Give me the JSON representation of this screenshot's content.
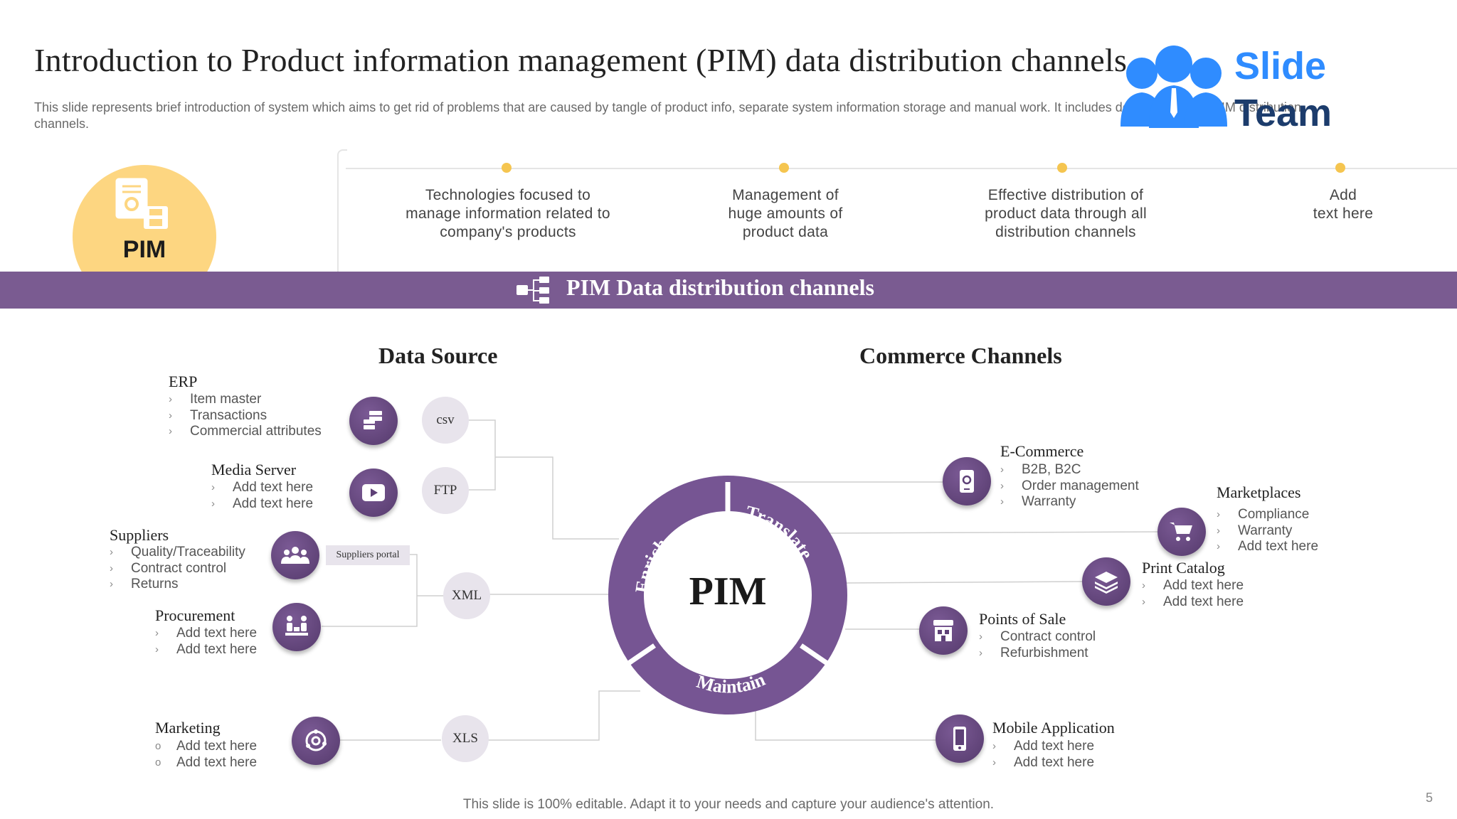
{
  "header": {
    "title": "Introduction to Product information management (PIM) data distribution channels",
    "subtitle": "This slide represents brief introduction of system which aims to get rid of problems that are caused by tangle of product info, separate system information storage and manual work. It includes details related to PIM distribution channels.",
    "logo_word1": "Slide",
    "logo_word2": "Team"
  },
  "badge": {
    "label": "PIM"
  },
  "timeline": [
    {
      "text": "Technologies focused to\nmanage information  related to\ncompany's products"
    },
    {
      "text": "Management  of\nhuge amounts of\nproduct data"
    },
    {
      "text": "Effective distribution of\nproduct data through  all\ndistribution channels"
    },
    {
      "text": "Add\ntext here"
    }
  ],
  "band": {
    "title": "PIM Data distribution channels"
  },
  "sections": {
    "source": "Data Source",
    "channels": "Commerce Channels"
  },
  "sources": [
    {
      "title": "ERP",
      "items": [
        "Item master",
        "Transactions",
        "Commercial attributes"
      ],
      "icon": "database-icon"
    },
    {
      "title": "Media Server",
      "items": [
        "Add text here",
        "Add text here"
      ],
      "icon": "video-play-icon"
    },
    {
      "title": "Suppliers",
      "items": [
        "Quality/Traceability",
        "Contract control",
        "Returns"
      ],
      "icon": "people-group-icon"
    },
    {
      "title": "Procurement",
      "items": [
        "Add text here",
        "Add text here"
      ],
      "icon": "procurement-icon"
    },
    {
      "title": "Marketing",
      "items": [
        "Add text here",
        "Add text here"
      ],
      "icon": "marketing-cycle-icon"
    }
  ],
  "formats": {
    "csv": "csv",
    "ftp": "FTP",
    "portal": "Suppliers  portal",
    "xml": "XML",
    "xls": "XLS"
  },
  "hub": {
    "center": "PIM",
    "arc_enrich": "Enrich",
    "arc_translate": "Translate",
    "arc_maintain": "Maintain"
  },
  "channels": [
    {
      "title": "E-Commerce",
      "items": [
        "B2B, B2C",
        "Order management",
        "Warranty"
      ],
      "icon": "ecommerce-icon"
    },
    {
      "title": "Marketplaces",
      "items": [
        "Compliance",
        "Warranty",
        "Add text here"
      ],
      "icon": "cart-icon"
    },
    {
      "title": "Print Catalog",
      "items": [
        "Add text here",
        "Add text here"
      ],
      "icon": "layers-icon"
    },
    {
      "title": "Points of Sale",
      "items": [
        "Contract control",
        "Refurbishment"
      ],
      "icon": "store-icon"
    },
    {
      "title": "Mobile Application",
      "items": [
        "Add text here",
        "Add text here"
      ],
      "icon": "mobile-icon"
    }
  ],
  "bullets": {
    "chevron": "›",
    "circle": "o"
  },
  "footer": "This slide is 100% editable. Adapt it to your needs and capture your audience's attention.",
  "page_number": "5",
  "colors": {
    "purple": "#7a5b91",
    "yellow": "#fdd681",
    "dot": "#f5c550",
    "logo_blue": "#2f8cff"
  }
}
